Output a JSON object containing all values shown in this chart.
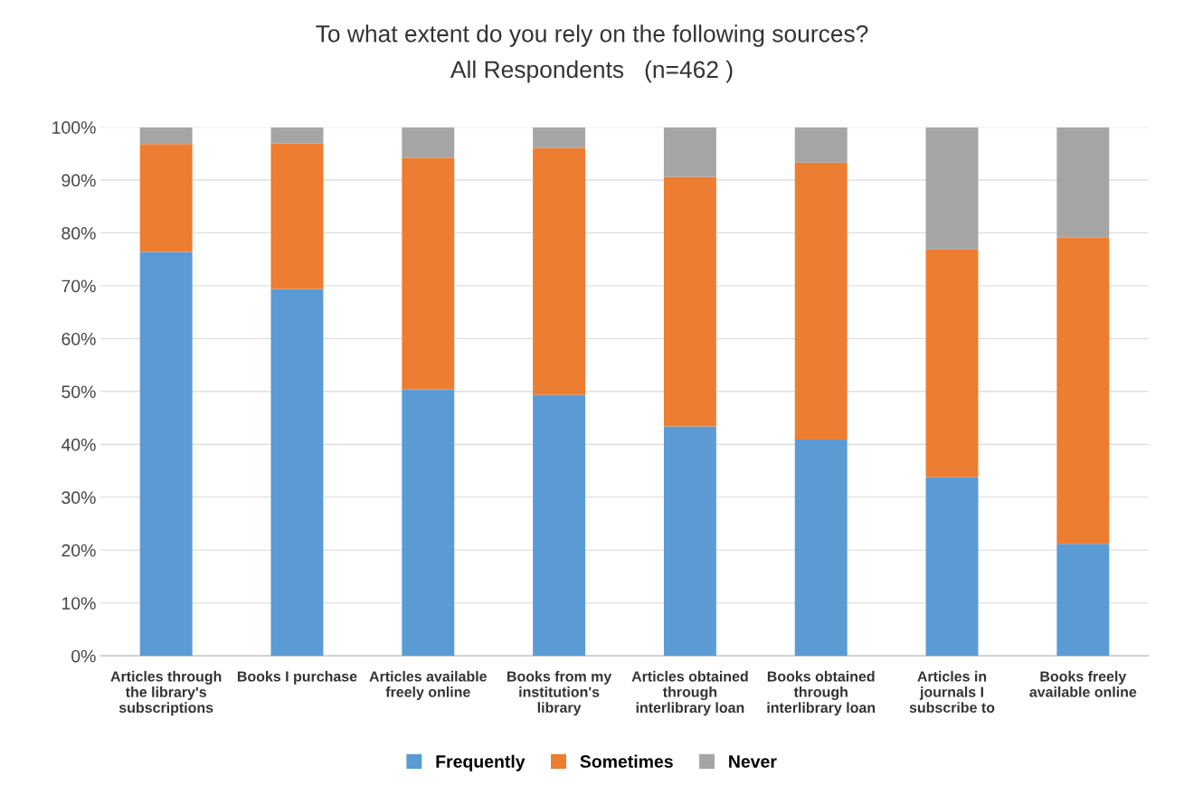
{
  "chart_data": {
    "type": "bar",
    "title": "To what extent do you rely on the following sources?",
    "subtitle": "All Respondents   (n=462 )",
    "categories": [
      "Articles through\nthe library's\nsubscriptions",
      "Books I purchase",
      "Articles available\nfreely online",
      "Books from my\ninstitution's\nlibrary",
      "Articles obtained\nthrough\ninterlibrary loan",
      "Books obtained\nthrough\ninterlibrary loan",
      "Articles in\njournals I\nsubscribe to",
      "Books freely\navailable online"
    ],
    "series": [
      {
        "name": "Frequently",
        "color": "#5b9bd5",
        "values": [
          76.4,
          69.4,
          50.4,
          49.4,
          43.4,
          40.9,
          33.8,
          21.2
        ]
      },
      {
        "name": "Sometimes",
        "color": "#ed7d31",
        "values": [
          20.4,
          27.5,
          43.8,
          46.7,
          47.2,
          52.4,
          43.1,
          57.9
        ]
      },
      {
        "name": "Never",
        "color": "#a5a5a5",
        "values": [
          3.2,
          3.1,
          5.8,
          3.9,
          9.4,
          6.7,
          23.1,
          20.9
        ]
      }
    ],
    "stacked": true,
    "ylim": [
      0,
      100
    ],
    "yticks": [
      {
        "value": 0,
        "label": "0%"
      },
      {
        "value": 10,
        "label": "10%"
      },
      {
        "value": 20,
        "label": "20%"
      },
      {
        "value": 30,
        "label": "30%"
      },
      {
        "value": 40,
        "label": "40%"
      },
      {
        "value": 50,
        "label": "50%"
      },
      {
        "value": 60,
        "label": "60%"
      },
      {
        "value": 70,
        "label": "70%"
      },
      {
        "value": 80,
        "label": "80%"
      },
      {
        "value": 90,
        "label": "90%"
      },
      {
        "value": 100,
        "label": "100%"
      }
    ],
    "grid": "y",
    "legend": "bottom"
  }
}
